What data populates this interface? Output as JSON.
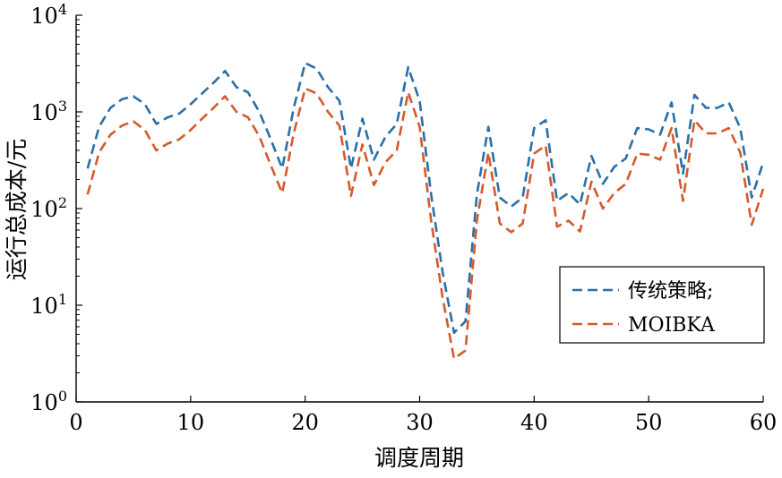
{
  "chart_data": {
    "type": "line",
    "title": "",
    "xlabel": "调度周期",
    "ylabel": "运行总成本/元",
    "xlim": [
      0,
      60
    ],
    "ylim": [
      1,
      10000
    ],
    "yscale": "log",
    "xticks": [
      0,
      10,
      20,
      30,
      40,
      50,
      60
    ],
    "yticks": [
      {
        "value": 1,
        "base": "10",
        "exp": "0"
      },
      {
        "value": 10,
        "base": "10",
        "exp": "1"
      },
      {
        "value": 100,
        "base": "10",
        "exp": "2"
      },
      {
        "value": 1000,
        "base": "10",
        "exp": "3"
      },
      {
        "value": 10000,
        "base": "10",
        "exp": "4"
      }
    ],
    "grid": false,
    "legend_position": "lower-right",
    "x": [
      1,
      2,
      3,
      4,
      5,
      6,
      7,
      8,
      9,
      10,
      11,
      12,
      13,
      14,
      15,
      16,
      17,
      18,
      19,
      20,
      21,
      22,
      23,
      24,
      25,
      26,
      27,
      28,
      29,
      30,
      31,
      32,
      33,
      34,
      35,
      36,
      37,
      38,
      39,
      40,
      41,
      42,
      43,
      44,
      45,
      46,
      47,
      48,
      49,
      50,
      51,
      52,
      53,
      54,
      55,
      56,
      57,
      58,
      59,
      60
    ],
    "series": [
      {
        "name": "传统策略;",
        "color": "#2a6fa8",
        "dash": "dashed",
        "values": [
          260,
          700,
          1100,
          1350,
          1450,
          1200,
          750,
          880,
          960,
          1200,
          1550,
          2000,
          2650,
          1800,
          1600,
          1000,
          520,
          260,
          1100,
          3200,
          2800,
          1800,
          1300,
          260,
          850,
          320,
          550,
          750,
          2900,
          1300,
          140,
          22,
          5.2,
          6.8,
          140,
          700,
          130,
          105,
          130,
          680,
          820,
          120,
          145,
          110,
          350,
          180,
          270,
          330,
          680,
          660,
          580,
          1250,
          230,
          1500,
          1100,
          1100,
          1250,
          680,
          130,
          300
        ]
      },
      {
        "name": "MOIBKA",
        "color": "#d45a2c",
        "dash": "dashed",
        "values": [
          140,
          380,
          580,
          720,
          800,
          650,
          400,
          470,
          520,
          650,
          850,
          1100,
          1450,
          1000,
          880,
          560,
          280,
          145,
          600,
          1750,
          1550,
          1000,
          720,
          135,
          460,
          175,
          300,
          400,
          1600,
          700,
          75,
          12,
          2.8,
          3.4,
          75,
          380,
          70,
          57,
          70,
          370,
          450,
          65,
          75,
          58,
          190,
          100,
          145,
          180,
          370,
          360,
          320,
          680,
          120,
          820,
          600,
          600,
          680,
          380,
          68,
          160
        ]
      }
    ]
  }
}
